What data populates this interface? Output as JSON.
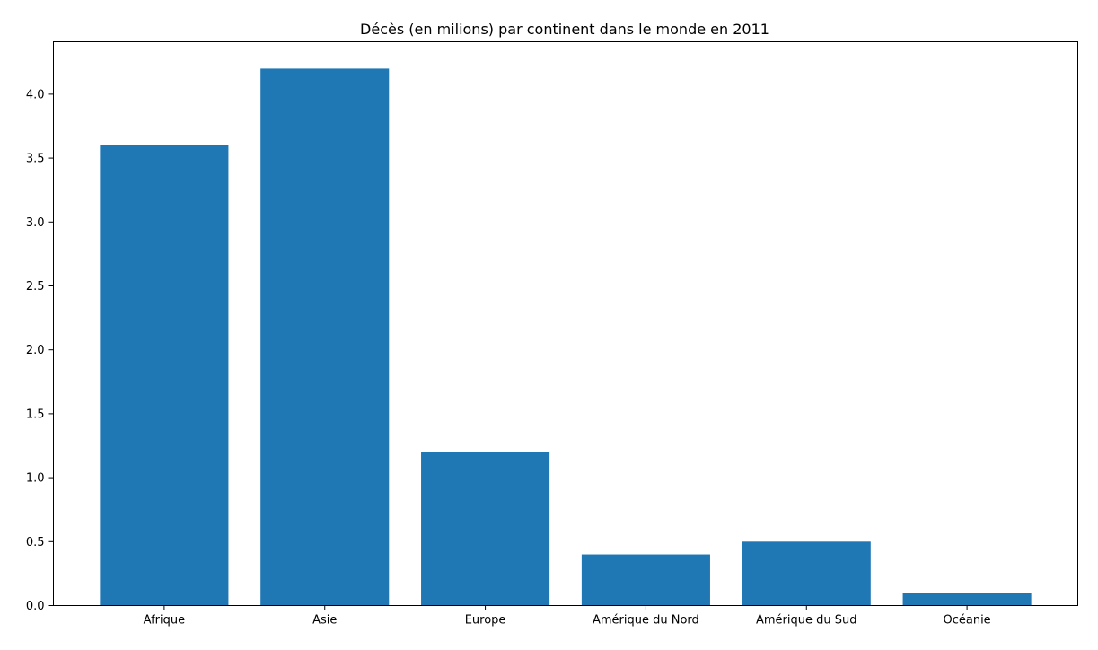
{
  "chart_data": {
    "type": "bar",
    "title": "Décès (en milions) par continent dans le monde en 2011",
    "xlabel": "",
    "ylabel": "",
    "categories": [
      "Afrique",
      "Asie",
      "Europe",
      "Amérique du Nord",
      "Amérique du Sud",
      "Océanie"
    ],
    "values": [
      3.6,
      4.2,
      1.2,
      0.4,
      0.5,
      0.1
    ],
    "ylim": [
      0,
      4.41
    ],
    "yticks": [
      0.0,
      0.5,
      1.0,
      1.5,
      2.0,
      2.5,
      3.0,
      3.5,
      4.0
    ],
    "ytick_labels": [
      "0.0",
      "0.5",
      "1.0",
      "1.5",
      "2.0",
      "2.5",
      "3.0",
      "3.5",
      "4.0"
    ],
    "bar_color": "#1f77b4",
    "grid": false,
    "legend": "none"
  }
}
